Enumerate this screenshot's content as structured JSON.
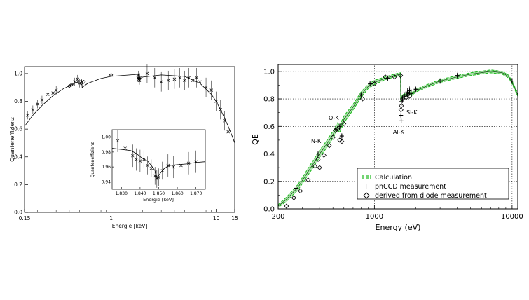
{
  "chart_data": [
    {
      "type": "scatter",
      "xlabel": "Energie [keV]",
      "ylabel": "Quanteneffizienz",
      "x_scale": "log",
      "xlim": [
        0.15,
        15
      ],
      "ylim": [
        0.0,
        1.05
      ],
      "x_ticks": [
        "0.15",
        "1",
        "10",
        "15"
      ],
      "y_ticks": [
        "0.0",
        "0.2",
        "0.4",
        "0.6",
        "0.8",
        "1.0"
      ],
      "grid": false,
      "legend": "none",
      "series": [
        {
          "style": "curve",
          "x": [
            0.15,
            0.18,
            0.22,
            0.28,
            0.35,
            0.45,
            0.5,
            0.525,
            0.53,
            0.6,
            0.8,
            1.0,
            1.5,
            1.83,
            1.84,
            2.0,
            3.0,
            5.0,
            7.0,
            9.0,
            10.0,
            11.0,
            12.0,
            13.0,
            14.0,
            15.0
          ],
          "y": [
            0.62,
            0.7,
            0.77,
            0.84,
            0.89,
            0.93,
            0.945,
            0.955,
            0.9,
            0.93,
            0.965,
            0.98,
            0.99,
            0.995,
            0.96,
            0.975,
            0.99,
            0.98,
            0.93,
            0.85,
            0.8,
            0.74,
            0.68,
            0.62,
            0.56,
            0.5
          ]
        },
        {
          "style": "cross",
          "x": [
            0.16,
            0.18,
            0.2,
            0.22,
            0.25,
            0.28,
            0.3,
            0.45,
            0.48,
            0.5,
            1.8,
            1.82,
            1.84,
            1.86,
            1.88,
            2.2,
            2.6,
            3.0,
            3.5,
            4.0,
            4.5,
            5.0,
            5.5,
            6.0,
            6.5,
            7.0,
            8.0,
            9.0,
            10.0,
            11.0,
            12.0,
            13.0
          ],
          "y": [
            0.7,
            0.74,
            0.78,
            0.81,
            0.85,
            0.86,
            0.88,
            0.94,
            0.96,
            0.93,
            0.97,
            0.99,
            0.96,
            0.95,
            0.97,
            1.0,
            0.97,
            0.94,
            0.95,
            0.96,
            0.97,
            0.95,
            0.97,
            0.95,
            0.97,
            0.94,
            0.9,
            0.88,
            0.8,
            0.74,
            0.66,
            0.58
          ]
        },
        {
          "style": "diamond",
          "x": [
            0.4,
            0.42,
            0.52,
            0.55,
            1.0
          ],
          "y": [
            0.91,
            0.92,
            0.93,
            0.94,
            0.99
          ]
        }
      ],
      "inset": {
        "type": "scatter",
        "xlabel": "Energie [keV]",
        "ylabel": "Quanteneffizienz",
        "xlim": [
          1.825,
          1.875
        ],
        "ylim": [
          0.93,
          1.01
        ],
        "x_ticks": [
          "1.830",
          "1.840",
          "1.850",
          "1.860",
          "1.870"
        ],
        "y_ticks": [
          "0.94",
          "0.96",
          "0.98",
          "1.00"
        ],
        "curve": {
          "x": [
            1.825,
            1.835,
            1.838,
            1.841,
            1.844,
            1.846,
            1.848,
            1.849,
            1.851,
            1.853,
            1.856,
            1.86,
            1.865,
            1.87,
            1.875
          ],
          "y": [
            0.985,
            0.982,
            0.978,
            0.972,
            0.968,
            0.962,
            0.955,
            0.945,
            0.952,
            0.958,
            0.962,
            0.963,
            0.964,
            0.966,
            0.967
          ],
          "y_err": []
        },
        "points": {
          "x": [
            1.828,
            1.832,
            1.836,
            1.838,
            1.84,
            1.842,
            1.844,
            1.846,
            1.848,
            1.849,
            1.85,
            1.852,
            1.855,
            1.858,
            1.862,
            1.866,
            1.87
          ],
          "y": [
            0.995,
            0.985,
            0.975,
            0.97,
            0.968,
            0.97,
            0.962,
            0.958,
            0.948,
            0.944,
            0.946,
            0.955,
            0.962,
            0.96,
            0.962,
            0.965,
            0.967
          ],
          "y_err": [
            0.015,
            0.015,
            0.015,
            0.015,
            0.015,
            0.012,
            0.012,
            0.012,
            0.012,
            0.012,
            0.012,
            0.012,
            0.015,
            0.015,
            0.015,
            0.015,
            0.015
          ]
        }
      }
    },
    {
      "type": "scatter",
      "xlabel": "Energy (eV)",
      "ylabel": "QE",
      "x_scale": "log",
      "xlim": [
        200,
        11000
      ],
      "ylim": [
        0.0,
        1.05
      ],
      "x_ticks": [
        "200",
        "1000",
        "10000"
      ],
      "y_ticks": [
        "0.0",
        "0.2",
        "0.4",
        "0.6",
        "0.8",
        "1.0"
      ],
      "grid": true,
      "legend": "bottom-right",
      "annotations": [
        "N-K",
        "O-K",
        "Si-K",
        "Al-K"
      ],
      "series": [
        {
          "name": "Calculation",
          "color": "#22bb22",
          "style": "band",
          "x": [
            200,
            230,
            280,
            350,
            400,
            450,
            500,
            540,
            560,
            600,
            700,
            800,
            900,
            1000,
            1200,
            1400,
            1550,
            1555,
            1600,
            1700,
            1800,
            1840,
            1845,
            2000,
            2500,
            3000,
            4000,
            5000,
            7000,
            8500,
            9500,
            10000,
            11000
          ],
          "y": [
            0.02,
            0.07,
            0.16,
            0.31,
            0.4,
            0.47,
            0.54,
            0.6,
            0.58,
            0.65,
            0.74,
            0.83,
            0.89,
            0.92,
            0.95,
            0.97,
            0.98,
            0.8,
            0.82,
            0.83,
            0.84,
            0.85,
            0.83,
            0.86,
            0.9,
            0.93,
            0.96,
            0.98,
            1.0,
            0.99,
            0.96,
            0.92,
            0.83
          ],
          "y_err": [
            0.01,
            0.015,
            0.02,
            0.025,
            0.025,
            0.025,
            0.025,
            0.025,
            0.025,
            0.025,
            0.02,
            0.02,
            0.015,
            0.015,
            0.01,
            0.01,
            0.01,
            0.01,
            0.01,
            0.01,
            0.01,
            0.01,
            0.01,
            0.01,
            0.01,
            0.01,
            0.01,
            0.01,
            0.01,
            0.01,
            0.01,
            0.01,
            0.01
          ]
        },
        {
          "name": "pnCCD measurement",
          "style": "plus",
          "x": [
            270,
            390,
            525,
            560,
            580,
            800,
            930,
            1250,
            1560,
            1565,
            1570,
            1600,
            1650,
            1700,
            1740,
            1800,
            1850,
            2000,
            3000,
            4000,
            10000
          ],
          "y": [
            0.15,
            0.4,
            0.58,
            0.6,
            0.53,
            0.83,
            0.91,
            0.95,
            0.68,
            0.64,
            0.78,
            0.8,
            0.82,
            0.83,
            0.85,
            0.86,
            0.84,
            0.87,
            0.93,
            0.97,
            0.93
          ],
          "y_err": [
            0.02,
            0.02,
            0.02,
            0.02,
            0.02,
            0.02,
            0.02,
            0.02,
            0.04,
            0.04,
            0.03,
            0.03,
            0.03,
            0.03,
            0.03,
            0.03,
            0.03,
            0.02,
            0.02,
            0.02,
            0.02
          ]
        },
        {
          "name": "derived from diode measurement",
          "style": "diamond",
          "x": [
            230,
            260,
            290,
            330,
            370,
            390,
            400,
            430,
            470,
            500,
            520,
            540,
            560,
            580,
            600,
            820,
            1000,
            1200,
            1400,
            1550,
            1560,
            1570,
            1600,
            1700,
            1750,
            1800
          ],
          "y": [
            0.02,
            0.08,
            0.13,
            0.21,
            0.31,
            0.36,
            0.3,
            0.39,
            0.46,
            0.52,
            0.57,
            0.58,
            0.5,
            0.49,
            0.62,
            0.8,
            0.91,
            0.96,
            0.96,
            0.97,
            0.72,
            0.75,
            0.8,
            0.81,
            0.83,
            0.82
          ]
        }
      ]
    }
  ]
}
